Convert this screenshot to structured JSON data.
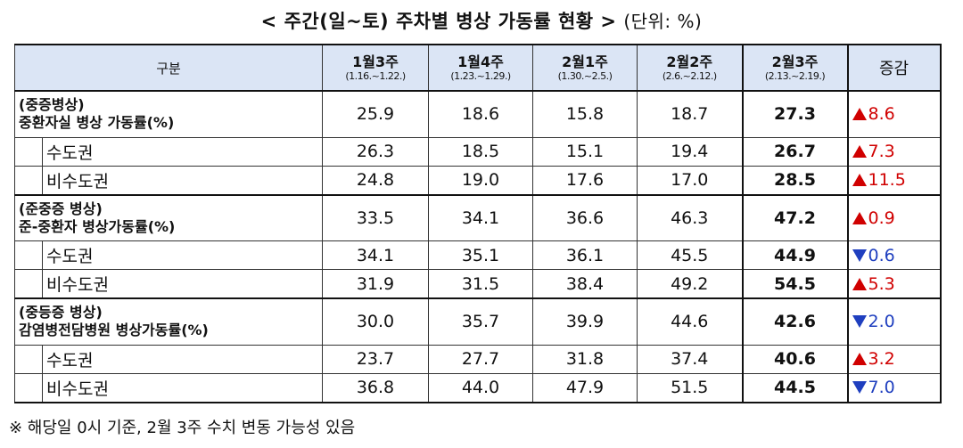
{
  "title": {
    "main": "< 주간(일~토) 주차별 병상 가동률 현황 >",
    "unit": "(단위: %)"
  },
  "header": {
    "category": "구분",
    "weeks": [
      {
        "label": "1월3주",
        "dates": "(1.16.~1.22.)"
      },
      {
        "label": "1월4주",
        "dates": "(1.23.~1.29.)"
      },
      {
        "label": "2월1주",
        "dates": "(1.30.~2.5.)"
      },
      {
        "label": "2월2주",
        "dates": "(2.6.~2.12.)"
      },
      {
        "label": "2월3주",
        "dates": "(2.13.~2.19.)"
      }
    ],
    "change": "증감"
  },
  "rows": [
    {
      "line1": "(중증병상)",
      "line2": "중환자실 병상 가동률(%)",
      "values": [
        "25.9",
        "18.6",
        "15.8",
        "18.7"
      ],
      "current": "27.3",
      "change": "8.6",
      "direction": "up"
    },
    {
      "label": "수도권",
      "values": [
        "26.3",
        "18.5",
        "15.1",
        "19.4"
      ],
      "current": "26.7",
      "change": "7.3",
      "direction": "up"
    },
    {
      "label": "비수도권",
      "values": [
        "24.8",
        "19.0",
        "17.6",
        "17.0"
      ],
      "current": "28.5",
      "change": "11.5",
      "direction": "up"
    },
    {
      "line1": "(준중증 병상)",
      "line2": "준-중환자 병상가동률(%)",
      "values": [
        "33.5",
        "34.1",
        "36.6",
        "46.3"
      ],
      "current": "47.2",
      "change": "0.9",
      "direction": "up"
    },
    {
      "label": "수도권",
      "values": [
        "34.1",
        "35.1",
        "36.1",
        "45.5"
      ],
      "current": "44.9",
      "change": "0.6",
      "direction": "down"
    },
    {
      "label": "비수도권",
      "values": [
        "31.9",
        "31.5",
        "38.4",
        "49.2"
      ],
      "current": "54.5",
      "change": "5.3",
      "direction": "up"
    },
    {
      "line1": "(중등증 병상)",
      "line2": "감염병전담병원 병상가동률(%)",
      "values": [
        "30.0",
        "35.7",
        "39.9",
        "44.6"
      ],
      "current": "42.6",
      "change": "2.0",
      "direction": "down"
    },
    {
      "label": "수도권",
      "values": [
        "23.7",
        "27.7",
        "31.8",
        "37.4"
      ],
      "current": "40.6",
      "change": "3.2",
      "direction": "up"
    },
    {
      "label": "비수도권",
      "values": [
        "36.8",
        "44.0",
        "47.9",
        "51.5"
      ],
      "current": "44.5",
      "change": "7.0",
      "direction": "down"
    }
  ],
  "footnote": "※ 해당일 0시 기준, 2월 3주 수치 변동 가능성 있음",
  "colors": {
    "header_bg": "#dbe5f5",
    "increase": "#d00000",
    "decrease": "#1f3fbf"
  }
}
